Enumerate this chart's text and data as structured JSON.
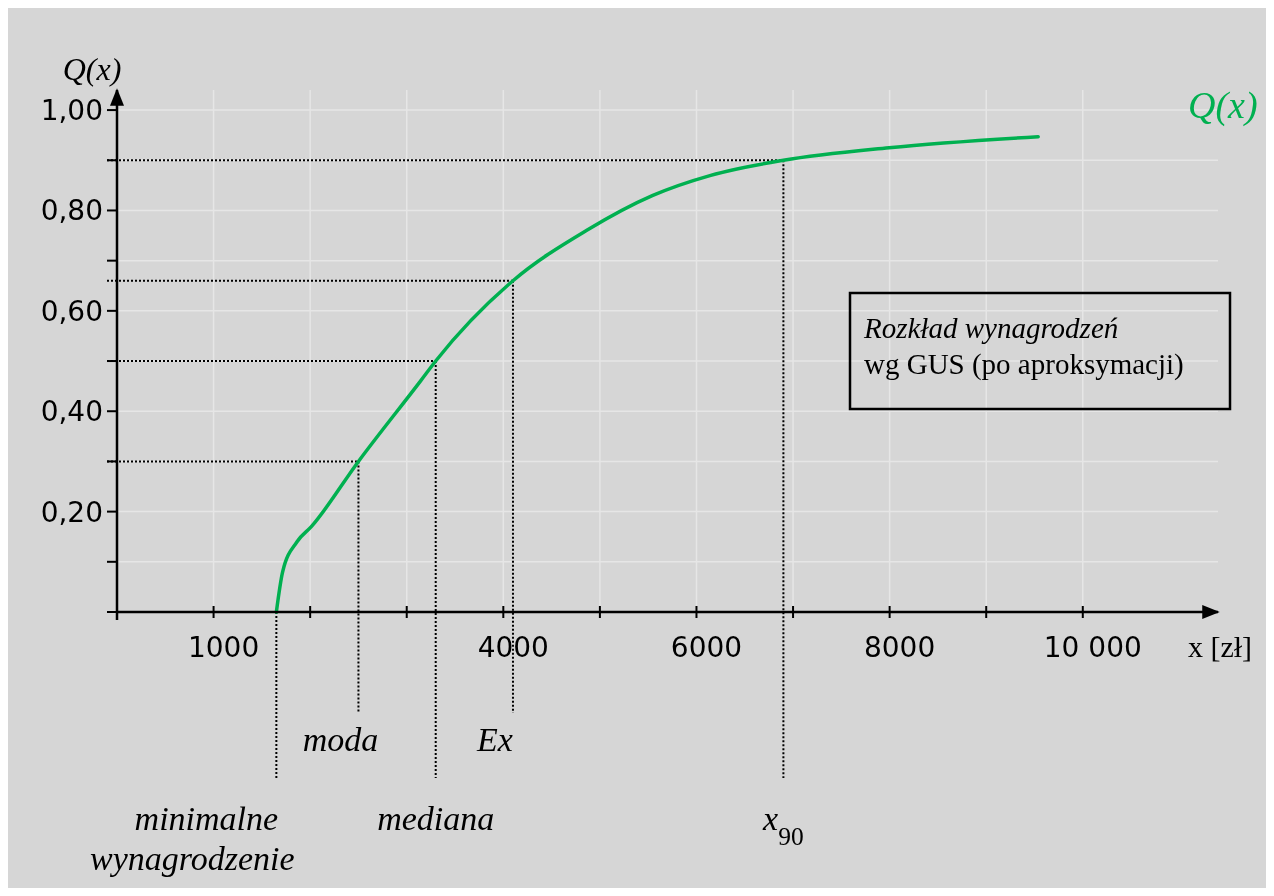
{
  "chart_data": {
    "type": "line",
    "ylabel": "Q(x)",
    "xlabel": "x [zł]",
    "x": [
      1650,
      1715,
      1864,
      2012,
      2500,
      3142,
      3300,
      4100,
      4860,
      5548,
      6148,
      6900,
      7994,
      9538
    ],
    "series": [
      {
        "name": "Q(x)",
        "color": "#00b050",
        "values": [
          0,
          0.08,
          0.14,
          0.17,
          0.3,
          0.46,
          0.5,
          0.66,
          0.76,
          0.83,
          0.87,
          0.9,
          0.925,
          0.947
        ]
      }
    ],
    "xlim": [
      0,
      11400
    ],
    "ylim": [
      0,
      1.04
    ],
    "xticks": [
      {
        "value": 0,
        "label": null
      },
      1000,
      {
        "value": 2000,
        "label": null
      },
      {
        "value": 3000,
        "label": null
      },
      4000,
      {
        "value": 5000,
        "label": null
      },
      6000,
      {
        "value": 7000,
        "label": null
      },
      8000,
      {
        "value": 9000,
        "label": null
      },
      {
        "value": 10000,
        "label": "10 000"
      }
    ],
    "yticks": [
      {
        "value": 0,
        "label": null
      },
      {
        "value": 0.1,
        "label": null
      },
      {
        "value": 0.2,
        "label": "0,20"
      },
      {
        "value": 0.3,
        "label": null
      },
      {
        "value": 0.4,
        "label": "0,40"
      },
      {
        "value": 0.5,
        "label": null
      },
      {
        "value": 0.6,
        "label": "0,60"
      },
      {
        "value": 0.7,
        "label": null
      },
      {
        "value": 0.8,
        "label": "0,80"
      },
      {
        "value": 0.9,
        "label": null
      },
      {
        "value": 1.0,
        "label": "1,00"
      }
    ],
    "grid": true,
    "line_style": "solid",
    "marker": "none",
    "ref_lines": [
      {
        "axis": "x",
        "value": 1650,
        "label": "minimalne wynagrodzenie",
        "line_style": "dotted"
      },
      {
        "axis": "x",
        "value": 2500,
        "label": "moda",
        "line_style": "dotted"
      },
      {
        "axis": "x",
        "value": 3300,
        "label": "mediana",
        "line_style": "dotted"
      },
      {
        "axis": "x",
        "value": 4100,
        "label": "Ex",
        "line_style": "dotted"
      },
      {
        "axis": "x",
        "value": 6900,
        "label": "x$_{90}$",
        "line_style": "dotted"
      },
      {
        "axis": "y",
        "value": 0.3,
        "line_style": "dotted"
      },
      {
        "axis": "y",
        "value": 0.5,
        "line_style": "dotted"
      },
      {
        "axis": "y",
        "value": 0.66,
        "line_style": "dotted"
      },
      {
        "axis": "y",
        "value": 0.9,
        "line_style": "dotted"
      }
    ],
    "annotations": [
      "Rozkład wynagrodzeń\nwg GUS (po aproksymacji)"
    ]
  }
}
